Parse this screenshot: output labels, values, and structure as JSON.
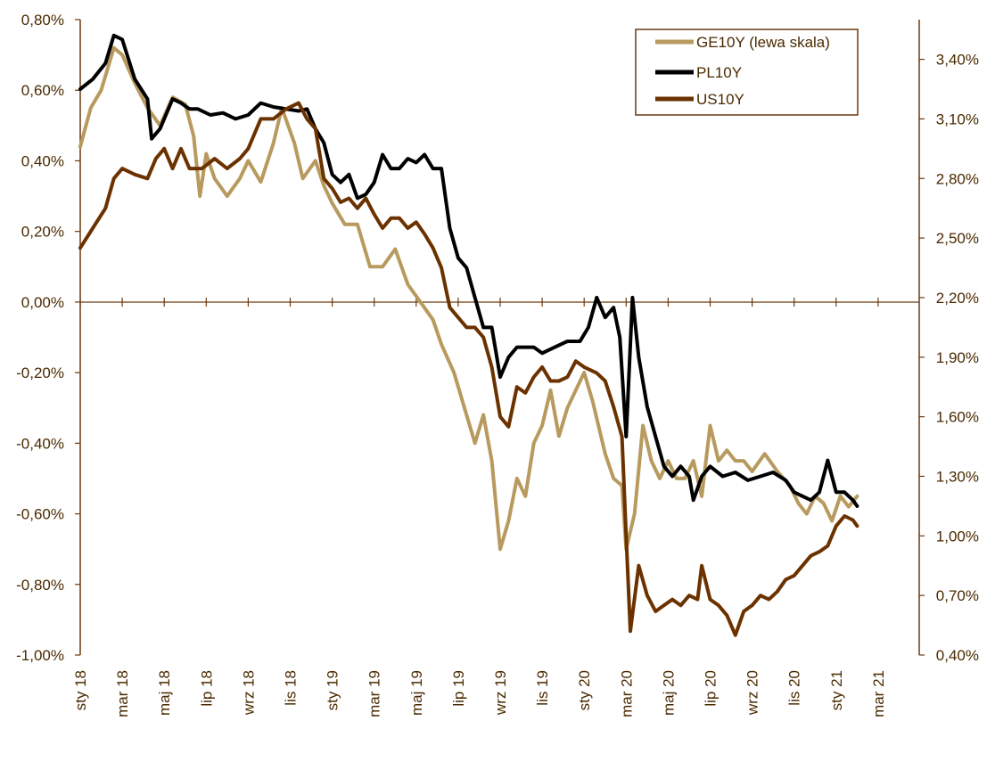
{
  "chart_data": {
    "type": "line",
    "title": "",
    "x_labels": [
      "sty 18",
      "mar 18",
      "maj 18",
      "lip 18",
      "wrz 18",
      "lis 18",
      "sty 19",
      "mar 19",
      "maj 19",
      "lip 19",
      "wrz 19",
      "lis 19",
      "sty 20",
      "mar 20",
      "maj 20",
      "lip 20",
      "wrz 20",
      "lis 20",
      "sty 21",
      "mar 21"
    ],
    "y_left": {
      "min": -1.0,
      "max": 0.8,
      "tick_labels": [
        "0,80%",
        "0,60%",
        "0,40%",
        "0,20%",
        "0,00%",
        "-0,20%",
        "-0,40%",
        "-0,60%",
        "-0,80%",
        "-1,00%"
      ]
    },
    "y_right": {
      "min": 0.4,
      "max": 3.6,
      "tick_labels": [
        "3,40%",
        "3,10%",
        "2,80%",
        "2,50%",
        "2,20%",
        "1,90%",
        "1,60%",
        "1,30%",
        "1,00%",
        "0,70%",
        "0,40%"
      ]
    },
    "legend_position": "top-right",
    "legend": [
      "GE10Y (lewa skala)",
      "PL10Y",
      "US10Y"
    ],
    "series": [
      {
        "name": "GE10Y (lewa skala)",
        "axis": "left",
        "color": "#b89a5e",
        "points": [
          [
            0,
            0.44
          ],
          [
            0.25,
            0.55
          ],
          [
            0.5,
            0.6
          ],
          [
            0.8,
            0.72
          ],
          [
            1,
            0.7
          ],
          [
            1.3,
            0.62
          ],
          [
            1.6,
            0.55
          ],
          [
            1.9,
            0.5
          ],
          [
            2.2,
            0.58
          ],
          [
            2.5,
            0.56
          ],
          [
            2.7,
            0.47
          ],
          [
            2.85,
            0.3
          ],
          [
            3,
            0.42
          ],
          [
            3.2,
            0.35
          ],
          [
            3.5,
            0.3
          ],
          [
            3.8,
            0.35
          ],
          [
            4,
            0.4
          ],
          [
            4.3,
            0.34
          ],
          [
            4.6,
            0.45
          ],
          [
            4.8,
            0.55
          ],
          [
            5.1,
            0.45
          ],
          [
            5.3,
            0.35
          ],
          [
            5.6,
            0.4
          ],
          [
            5.8,
            0.33
          ],
          [
            6,
            0.28
          ],
          [
            6.3,
            0.22
          ],
          [
            6.6,
            0.22
          ],
          [
            6.9,
            0.1
          ],
          [
            7.2,
            0.1
          ],
          [
            7.5,
            0.15
          ],
          [
            7.8,
            0.05
          ],
          [
            8.1,
            0.0
          ],
          [
            8.4,
            -0.05
          ],
          [
            8.6,
            -0.12
          ],
          [
            8.9,
            -0.2
          ],
          [
            9.2,
            -0.32
          ],
          [
            9.4,
            -0.4
          ],
          [
            9.6,
            -0.32
          ],
          [
            9.8,
            -0.45
          ],
          [
            10,
            -0.7
          ],
          [
            10.2,
            -0.62
          ],
          [
            10.4,
            -0.5
          ],
          [
            10.6,
            -0.55
          ],
          [
            10.8,
            -0.4
          ],
          [
            11,
            -0.35
          ],
          [
            11.2,
            -0.25
          ],
          [
            11.4,
            -0.38
          ],
          [
            11.6,
            -0.3
          ],
          [
            11.8,
            -0.25
          ],
          [
            12,
            -0.2
          ],
          [
            12.2,
            -0.28
          ],
          [
            12.5,
            -0.43
          ],
          [
            12.7,
            -0.5
          ],
          [
            12.9,
            -0.52
          ],
          [
            13,
            -0.7
          ],
          [
            13.2,
            -0.6
          ],
          [
            13.4,
            -0.35
          ],
          [
            13.6,
            -0.45
          ],
          [
            13.8,
            -0.5
          ],
          [
            14,
            -0.45
          ],
          [
            14.2,
            -0.5
          ],
          [
            14.4,
            -0.5
          ],
          [
            14.6,
            -0.45
          ],
          [
            14.8,
            -0.55
          ],
          [
            15,
            -0.35
          ],
          [
            15.2,
            -0.45
          ],
          [
            15.4,
            -0.42
          ],
          [
            15.6,
            -0.45
          ],
          [
            15.8,
            -0.45
          ],
          [
            16,
            -0.48
          ],
          [
            16.3,
            -0.43
          ],
          [
            16.6,
            -0.48
          ],
          [
            16.9,
            -0.52
          ],
          [
            17.1,
            -0.57
          ],
          [
            17.3,
            -0.6
          ],
          [
            17.5,
            -0.55
          ],
          [
            17.7,
            -0.57
          ],
          [
            17.9,
            -0.62
          ],
          [
            18.1,
            -0.55
          ],
          [
            18.3,
            -0.58
          ],
          [
            18.5,
            -0.55
          ]
        ]
      },
      {
        "name": "PL10Y",
        "axis": "right",
        "color": "#000000",
        "points": [
          [
            0,
            3.25
          ],
          [
            0.3,
            3.3
          ],
          [
            0.6,
            3.38
          ],
          [
            0.8,
            3.52
          ],
          [
            1,
            3.5
          ],
          [
            1.3,
            3.3
          ],
          [
            1.6,
            3.2
          ],
          [
            1.7,
            3.0
          ],
          [
            1.9,
            3.05
          ],
          [
            2.2,
            3.2
          ],
          [
            2.4,
            3.18
          ],
          [
            2.6,
            3.15
          ],
          [
            2.8,
            3.15
          ],
          [
            3.1,
            3.12
          ],
          [
            3.4,
            3.13
          ],
          [
            3.7,
            3.1
          ],
          [
            4,
            3.12
          ],
          [
            4.3,
            3.18
          ],
          [
            4.6,
            3.16
          ],
          [
            4.9,
            3.15
          ],
          [
            5.2,
            3.14
          ],
          [
            5.4,
            3.15
          ],
          [
            5.6,
            3.05
          ],
          [
            5.8,
            2.98
          ],
          [
            6,
            2.82
          ],
          [
            6.2,
            2.78
          ],
          [
            6.4,
            2.82
          ],
          [
            6.6,
            2.7
          ],
          [
            6.8,
            2.72
          ],
          [
            7,
            2.78
          ],
          [
            7.2,
            2.92
          ],
          [
            7.4,
            2.85
          ],
          [
            7.6,
            2.85
          ],
          [
            7.8,
            2.9
          ],
          [
            8,
            2.88
          ],
          [
            8.2,
            2.92
          ],
          [
            8.4,
            2.85
          ],
          [
            8.6,
            2.85
          ],
          [
            8.8,
            2.55
          ],
          [
            9,
            2.4
          ],
          [
            9.2,
            2.35
          ],
          [
            9.4,
            2.2
          ],
          [
            9.6,
            2.05
          ],
          [
            9.8,
            2.05
          ],
          [
            10,
            1.8
          ],
          [
            10.2,
            1.9
          ],
          [
            10.4,
            1.95
          ],
          [
            10.6,
            1.95
          ],
          [
            10.8,
            1.95
          ],
          [
            11,
            1.92
          ],
          [
            11.3,
            1.95
          ],
          [
            11.6,
            1.98
          ],
          [
            11.9,
            1.98
          ],
          [
            12.1,
            2.05
          ],
          [
            12.3,
            2.2
          ],
          [
            12.5,
            2.1
          ],
          [
            12.7,
            2.15
          ],
          [
            12.85,
            2.0
          ],
          [
            13,
            1.5
          ],
          [
            13.15,
            2.2
          ],
          [
            13.3,
            1.9
          ],
          [
            13.5,
            1.65
          ],
          [
            13.7,
            1.5
          ],
          [
            13.9,
            1.35
          ],
          [
            14.1,
            1.3
          ],
          [
            14.3,
            1.35
          ],
          [
            14.5,
            1.3
          ],
          [
            14.6,
            1.18
          ],
          [
            14.8,
            1.3
          ],
          [
            15,
            1.35
          ],
          [
            15.3,
            1.3
          ],
          [
            15.6,
            1.32
          ],
          [
            15.9,
            1.28
          ],
          [
            16.2,
            1.3
          ],
          [
            16.5,
            1.32
          ],
          [
            16.8,
            1.28
          ],
          [
            17,
            1.22
          ],
          [
            17.2,
            1.2
          ],
          [
            17.4,
            1.18
          ],
          [
            17.6,
            1.22
          ],
          [
            17.8,
            1.38
          ],
          [
            18,
            1.22
          ],
          [
            18.2,
            1.22
          ],
          [
            18.4,
            1.18
          ],
          [
            18.5,
            1.15
          ]
        ]
      },
      {
        "name": "US10Y",
        "axis": "right",
        "color": "#6b3200",
        "points": [
          [
            0,
            2.45
          ],
          [
            0.3,
            2.55
          ],
          [
            0.6,
            2.65
          ],
          [
            0.8,
            2.8
          ],
          [
            1,
            2.85
          ],
          [
            1.3,
            2.82
          ],
          [
            1.6,
            2.8
          ],
          [
            1.8,
            2.9
          ],
          [
            2,
            2.95
          ],
          [
            2.2,
            2.85
          ],
          [
            2.4,
            2.95
          ],
          [
            2.6,
            2.85
          ],
          [
            2.9,
            2.85
          ],
          [
            3.2,
            2.9
          ],
          [
            3.5,
            2.85
          ],
          [
            3.8,
            2.9
          ],
          [
            4,
            2.95
          ],
          [
            4.3,
            3.1
          ],
          [
            4.6,
            3.1
          ],
          [
            4.9,
            3.15
          ],
          [
            5.2,
            3.18
          ],
          [
            5.4,
            3.1
          ],
          [
            5.6,
            3.05
          ],
          [
            5.8,
            2.8
          ],
          [
            6,
            2.75
          ],
          [
            6.2,
            2.68
          ],
          [
            6.4,
            2.7
          ],
          [
            6.6,
            2.65
          ],
          [
            6.8,
            2.7
          ],
          [
            7,
            2.62
          ],
          [
            7.2,
            2.55
          ],
          [
            7.4,
            2.6
          ],
          [
            7.6,
            2.6
          ],
          [
            7.8,
            2.55
          ],
          [
            8,
            2.58
          ],
          [
            8.2,
            2.52
          ],
          [
            8.4,
            2.45
          ],
          [
            8.6,
            2.35
          ],
          [
            8.8,
            2.15
          ],
          [
            9,
            2.1
          ],
          [
            9.2,
            2.05
          ],
          [
            9.4,
            2.05
          ],
          [
            9.6,
            2.0
          ],
          [
            9.8,
            1.85
          ],
          [
            10,
            1.6
          ],
          [
            10.2,
            1.55
          ],
          [
            10.4,
            1.75
          ],
          [
            10.6,
            1.72
          ],
          [
            10.8,
            1.8
          ],
          [
            11,
            1.85
          ],
          [
            11.2,
            1.78
          ],
          [
            11.4,
            1.78
          ],
          [
            11.6,
            1.8
          ],
          [
            11.8,
            1.88
          ],
          [
            12,
            1.85
          ],
          [
            12.3,
            1.82
          ],
          [
            12.5,
            1.78
          ],
          [
            12.7,
            1.65
          ],
          [
            12.9,
            1.5
          ],
          [
            13,
            1.0
          ],
          [
            13.1,
            0.52
          ],
          [
            13.3,
            0.85
          ],
          [
            13.5,
            0.7
          ],
          [
            13.7,
            0.62
          ],
          [
            13.9,
            0.65
          ],
          [
            14.1,
            0.68
          ],
          [
            14.3,
            0.65
          ],
          [
            14.5,
            0.7
          ],
          [
            14.7,
            0.68
          ],
          [
            14.8,
            0.85
          ],
          [
            15,
            0.68
          ],
          [
            15.2,
            0.65
          ],
          [
            15.4,
            0.6
          ],
          [
            15.6,
            0.5
          ],
          [
            15.8,
            0.62
          ],
          [
            16,
            0.65
          ],
          [
            16.2,
            0.7
          ],
          [
            16.4,
            0.68
          ],
          [
            16.6,
            0.72
          ],
          [
            16.8,
            0.78
          ],
          [
            17,
            0.8
          ],
          [
            17.2,
            0.85
          ],
          [
            17.4,
            0.9
          ],
          [
            17.6,
            0.92
          ],
          [
            17.8,
            0.95
          ],
          [
            18,
            1.05
          ],
          [
            18.2,
            1.1
          ],
          [
            18.4,
            1.08
          ],
          [
            18.5,
            1.05
          ]
        ]
      }
    ]
  }
}
